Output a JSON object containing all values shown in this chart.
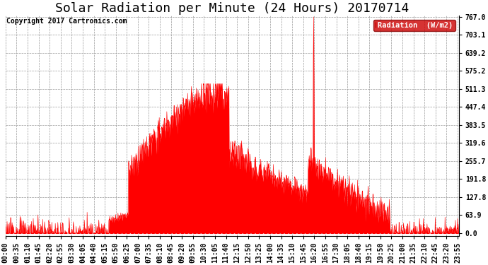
{
  "title": "Solar Radiation per Minute (24 Hours) 20170714",
  "copyright_text": "Copyright 2017 Cartronics.com",
  "legend_label": "Radiation  (W/m2)",
  "y_ticks": [
    0.0,
    63.9,
    127.8,
    191.8,
    255.7,
    319.6,
    383.5,
    447.4,
    511.3,
    575.2,
    639.2,
    703.1,
    767.0
  ],
  "y_max": 767.0,
  "fill_color": "#ff0000",
  "line_color": "#ff0000",
  "bg_color": "#ffffff",
  "grid_color": "#999999",
  "legend_bg": "#cc0000",
  "title_fontsize": 13,
  "label_fontsize": 7,
  "copyright_fontsize": 7,
  "x_label_interval": 35,
  "total_minutes": 1440
}
